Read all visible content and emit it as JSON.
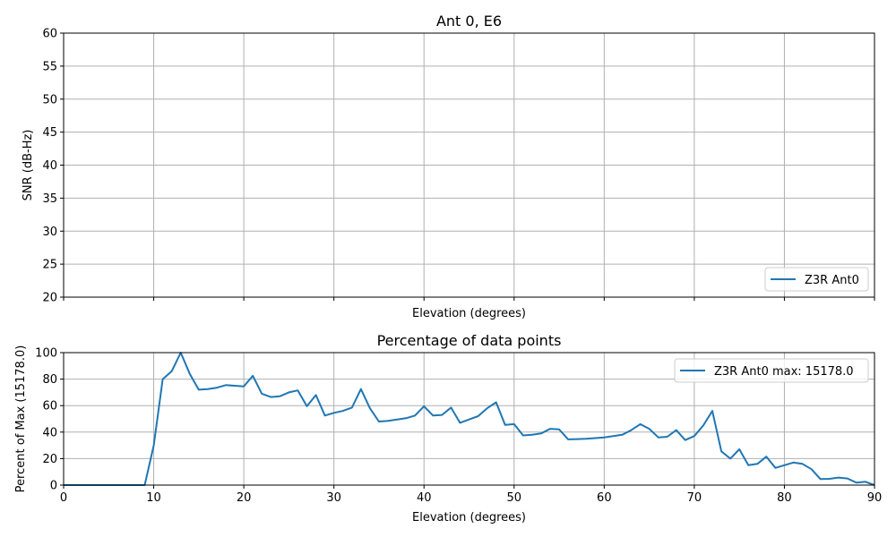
{
  "chart_data": [
    {
      "type": "line",
      "title": "Ant 0, E6",
      "xlabel": "Elevation (degrees)",
      "ylabel": "SNR (dB-Hz)",
      "xlim": [
        0,
        90
      ],
      "ylim": [
        20,
        60
      ],
      "yticks": [
        20,
        25,
        30,
        35,
        40,
        45,
        50,
        55,
        60
      ],
      "xticks": [
        0,
        10,
        20,
        30,
        40,
        50,
        60,
        70,
        80,
        90
      ],
      "show_xtick_labels": false,
      "grid": true,
      "legend_placement": "lower-right",
      "series": [
        {
          "name": "Z3R Ant0",
          "color": "#1f77b4",
          "x": [],
          "y": []
        }
      ]
    },
    {
      "type": "line",
      "title": "Percentage of data points",
      "xlabel": "Elevation (degrees)",
      "ylabel": "Percent of Max (15178.0)",
      "xlim": [
        0,
        90
      ],
      "ylim": [
        0,
        100
      ],
      "yticks": [
        0,
        20,
        40,
        60,
        80,
        100
      ],
      "xticks": [
        0,
        10,
        20,
        30,
        40,
        50,
        60,
        70,
        80,
        90
      ],
      "grid": true,
      "legend_placement": "upper-right",
      "series": [
        {
          "name": "Z3R Ant0 max: 15178.0",
          "color": "#1f77b4",
          "x": [
            0,
            1,
            2,
            3,
            4,
            5,
            6,
            7,
            8,
            9,
            10,
            11,
            12,
            13,
            14,
            15,
            16,
            17,
            18,
            19,
            20,
            21,
            22,
            23,
            24,
            25,
            26,
            27,
            28,
            29,
            30,
            31,
            32,
            33,
            34,
            35,
            36,
            37,
            38,
            39,
            40,
            41,
            42,
            43,
            44,
            45,
            46,
            47,
            48,
            49,
            50,
            51,
            52,
            53,
            54,
            55,
            56,
            57,
            58,
            59,
            60,
            61,
            62,
            63,
            64,
            65,
            66,
            67,
            68,
            69,
            70,
            71,
            72,
            73,
            74,
            75,
            76,
            77,
            78,
            79,
            80,
            81,
            82,
            83,
            84,
            85,
            86,
            87,
            88,
            89,
            90
          ],
          "y": [
            0,
            0,
            0,
            0,
            0,
            0,
            0,
            0,
            0,
            0,
            30,
            80,
            86,
            100,
            84,
            72,
            72.5,
            73.5,
            75.5,
            75,
            74.5,
            82.5,
            69,
            66.5,
            67,
            70,
            71.5,
            59.5,
            68,
            52.5,
            54.5,
            56,
            58.5,
            72.5,
            58,
            48,
            48.5,
            49.5,
            50.5,
            52.5,
            59.5,
            52.5,
            53,
            58.5,
            47,
            49.5,
            52,
            58,
            62.5,
            45.5,
            46,
            37.5,
            38,
            39,
            42.5,
            42,
            34.5,
            34.7,
            35,
            35.5,
            36,
            37,
            38,
            41.5,
            46,
            42.5,
            36,
            36.5,
            41.5,
            34,
            37,
            45,
            56,
            25.5,
            20,
            27,
            15,
            16,
            21.5,
            13,
            15,
            17,
            16,
            12,
            4.5,
            4.7,
            5.7,
            5,
            1.8,
            2.5,
            0
          ]
        }
      ]
    }
  ]
}
